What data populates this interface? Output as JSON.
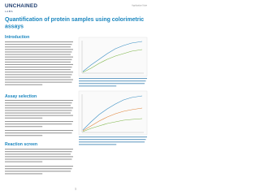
{
  "header": {
    "brand": "UNCHAINED",
    "brand_sub": "LABS",
    "tag": "Application Note"
  },
  "title": {
    "lines": [
      "Quantification of protein samples using colorimetric",
      "assays"
    ]
  },
  "sections": [
    {
      "heading": "Introduction"
    },
    {
      "heading": "Assay selection"
    },
    {
      "heading": "Reaction screen"
    }
  ],
  "footer": {
    "page": "1"
  }
}
